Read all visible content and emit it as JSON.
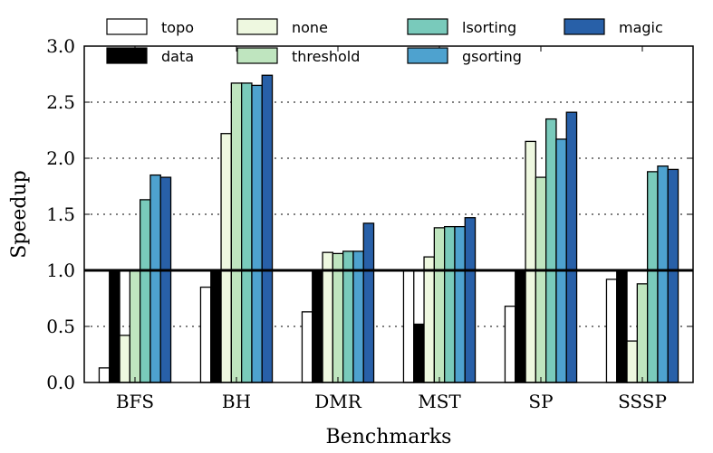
{
  "chart_data": {
    "type": "bar",
    "title": "",
    "xlabel": "Benchmarks",
    "ylabel": "Speedup",
    "ylim": [
      0,
      3.0
    ],
    "yticks": [
      "0.0",
      "0.5",
      "1.0",
      "1.5",
      "2.0",
      "2.5",
      "3.0"
    ],
    "grid": "horizontal dotted",
    "reference_line": 1.0,
    "legend_position": "top",
    "categories": [
      "BFS",
      "BH",
      "DMR",
      "MST",
      "SP",
      "SSSP"
    ],
    "series": [
      {
        "name": "topo",
        "color": "#ffffff",
        "values": [
          0.13,
          0.85,
          0.63,
          1.0,
          0.68,
          0.92
        ]
      },
      {
        "name": "data",
        "color": "#000000",
        "values": [
          1.0,
          1.0,
          1.0,
          0.52,
          1.0,
          1.0
        ]
      },
      {
        "name": "none",
        "color": "#eef8e0",
        "values": [
          0.42,
          2.22,
          1.16,
          1.12,
          2.15,
          0.37
        ]
      },
      {
        "name": "threshold",
        "color": "#bfe5bf",
        "values": [
          1.0,
          2.67,
          1.15,
          1.38,
          1.83,
          0.88
        ]
      },
      {
        "name": "lsorting",
        "color": "#79cabb",
        "values": [
          1.63,
          2.67,
          1.17,
          1.39,
          2.35,
          1.88
        ]
      },
      {
        "name": "gsorting",
        "color": "#4ea2cf",
        "values": [
          1.85,
          2.65,
          1.17,
          1.39,
          2.17,
          1.93
        ]
      },
      {
        "name": "magic",
        "color": "#2860a8",
        "values": [
          1.83,
          2.74,
          1.42,
          1.47,
          2.41,
          1.9
        ]
      }
    ]
  }
}
